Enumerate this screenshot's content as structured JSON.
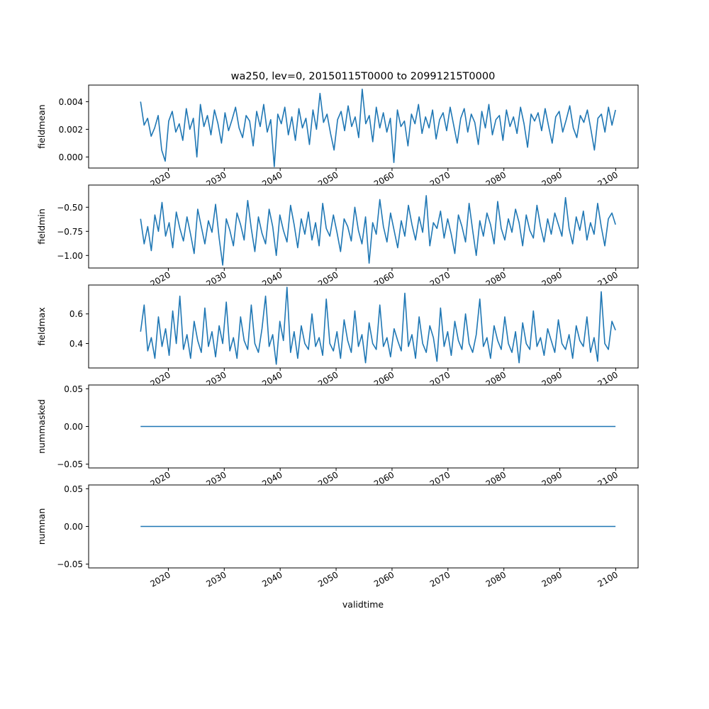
{
  "figure": {
    "title": "wa250, lev=0, 20150115T0000 to 20991215T0000",
    "xlabel": "validtime"
  },
  "style": {
    "line_color": "#1f77b4",
    "axes_color": "#000000",
    "background": "#ffffff"
  },
  "chart_data": [
    {
      "type": "line",
      "ylabel": "fieldmean",
      "x_range": [
        2015.04,
        2099.96
      ],
      "xlim": [
        2005.75,
        2104.0
      ],
      "x_ticks": [
        2020,
        2030,
        2040,
        2050,
        2060,
        2070,
        2080,
        2090,
        2100
      ],
      "x_tick_labels": [
        "2020",
        "2030",
        "2040",
        "2050",
        "2060",
        "2070",
        "2080",
        "2090",
        "2100"
      ],
      "ylim": [
        -0.0008,
        0.0052
      ],
      "y_ticks": [
        0.0,
        0.002,
        0.004
      ],
      "y_tick_labels": [
        "0.000",
        "0.002",
        "0.004"
      ],
      "series": [
        {
          "values": [
            0.004,
            0.0023,
            0.0028,
            0.0015,
            0.0021,
            0.003,
            0.0005,
            -0.0003,
            0.0026,
            0.0033,
            0.0018,
            0.0024,
            0.0012,
            0.0035,
            0.002,
            0.0028,
            0.0,
            0.0038,
            0.0022,
            0.003,
            0.0016,
            0.0034,
            0.0024,
            0.001,
            0.0032,
            0.0019,
            0.0027,
            0.0036,
            0.0021,
            0.0014,
            0.003,
            0.0026,
            0.0008,
            0.0033,
            0.0022,
            0.0038,
            0.0018,
            0.0027,
            -0.0007,
            0.0031,
            0.0024,
            0.0036,
            0.0016,
            0.0029,
            0.0012,
            0.0035,
            0.0021,
            0.0028,
            0.0009,
            0.0034,
            0.002,
            0.0046,
            0.0025,
            0.0031,
            0.0017,
            0.0005,
            0.0027,
            0.0033,
            0.0019,
            0.0037,
            0.0022,
            0.0029,
            0.0014,
            0.0049,
            0.0024,
            0.003,
            0.0011,
            0.0036,
            0.0021,
            0.0032,
            0.0018,
            0.0028,
            -0.0004,
            0.0034,
            0.0022,
            0.0026,
            0.0008,
            0.0031,
            0.0024,
            0.0038,
            0.0017,
            0.0029,
            0.0021,
            0.0034,
            0.0013,
            0.0027,
            0.0032,
            0.0019,
            0.0036,
            0.0023,
            0.001,
            0.0028,
            0.0035,
            0.0018,
            0.0031,
            0.0025,
            0.0009,
            0.0033,
            0.0021,
            0.0038,
            0.0016,
            0.0027,
            0.003,
            0.0012,
            0.0034,
            0.0022,
            0.0029,
            0.0017,
            0.0036,
            0.0024,
            0.0007,
            0.0031,
            0.0026,
            0.0032,
            0.0019,
            0.0035,
            0.0022,
            0.001,
            0.0029,
            0.0033,
            0.0018,
            0.0027,
            0.0037,
            0.0021,
            0.0014,
            0.003,
            0.0025,
            0.0034,
            0.002,
            0.0005,
            0.0028,
            0.0031,
            0.0018,
            0.0036,
            0.0023,
            0.0034
          ]
        }
      ]
    },
    {
      "type": "line",
      "ylabel": "fieldmin",
      "x_range": [
        2015.04,
        2099.96
      ],
      "xlim": [
        2005.75,
        2104.0
      ],
      "x_ticks": [
        2020,
        2030,
        2040,
        2050,
        2060,
        2070,
        2080,
        2090,
        2100
      ],
      "x_tick_labels": [
        "2020",
        "2030",
        "2040",
        "2050",
        "2060",
        "2070",
        "2080",
        "2090",
        "2100"
      ],
      "ylim": [
        -1.13,
        -0.27
      ],
      "y_ticks": [
        -1.0,
        -0.75,
        -0.5
      ],
      "y_tick_labels": [
        "−1.00",
        "−0.75",
        "−0.50"
      ],
      "series": [
        {
          "values": [
            -0.62,
            -0.88,
            -0.7,
            -0.95,
            -0.58,
            -0.75,
            -0.45,
            -0.8,
            -0.66,
            -0.92,
            -0.55,
            -0.72,
            -0.85,
            -0.6,
            -0.78,
            -0.98,
            -0.52,
            -0.7,
            -0.88,
            -0.64,
            -0.76,
            -0.47,
            -0.82,
            -1.1,
            -0.62,
            -0.74,
            -0.9,
            -0.56,
            -0.68,
            -0.84,
            -0.43,
            -0.72,
            -0.96,
            -0.6,
            -0.77,
            -0.88,
            -0.52,
            -0.7,
            -1.0,
            -0.58,
            -0.74,
            -0.86,
            -0.48,
            -0.68,
            -0.92,
            -0.62,
            -0.78,
            -0.55,
            -0.84,
            -0.66,
            -0.9,
            -0.46,
            -0.72,
            -0.8,
            -0.58,
            -0.76,
            -0.96,
            -0.62,
            -0.7,
            -0.85,
            -0.5,
            -0.74,
            -0.88,
            -0.6,
            -1.08,
            -0.66,
            -0.78,
            -0.42,
            -0.7,
            -0.86,
            -0.56,
            -0.74,
            -0.92,
            -0.64,
            -0.8,
            -0.48,
            -0.68,
            -0.84,
            -0.6,
            -0.76,
            -0.38,
            -0.9,
            -0.66,
            -0.72,
            -0.54,
            -0.82,
            -0.62,
            -0.78,
            -0.98,
            -0.58,
            -0.7,
            -0.86,
            -0.46,
            -0.74,
            -1.0,
            -0.64,
            -0.8,
            -0.56,
            -0.68,
            -0.88,
            -0.44,
            -0.72,
            -0.84,
            -0.62,
            -0.76,
            -0.52,
            -0.66,
            -0.9,
            -0.58,
            -0.74,
            -0.82,
            -0.48,
            -0.7,
            -0.86,
            -0.62,
            -0.78,
            -0.56,
            -0.68,
            -0.8,
            -0.4,
            -0.72,
            -0.88,
            -0.6,
            -0.74,
            -0.54,
            -0.84,
            -0.66,
            -0.78,
            -0.46,
            -0.7,
            -0.9,
            -0.62,
            -0.56,
            -0.68
          ]
        }
      ]
    },
    {
      "type": "line",
      "ylabel": "fieldmax",
      "x_range": [
        2015.04,
        2099.96
      ],
      "xlim": [
        2005.75,
        2104.0
      ],
      "x_ticks": [
        2020,
        2030,
        2040,
        2050,
        2060,
        2070,
        2080,
        2090,
        2100
      ],
      "x_tick_labels": [
        "2020",
        "2030",
        "2040",
        "2050",
        "2060",
        "2070",
        "2080",
        "2090",
        "2100"
      ],
      "ylim": [
        0.235,
        0.795
      ],
      "y_ticks": [
        0.4,
        0.6
      ],
      "y_tick_labels": [
        "0.4",
        "0.6"
      ],
      "series": [
        {
          "values": [
            0.48,
            0.66,
            0.35,
            0.44,
            0.3,
            0.58,
            0.38,
            0.5,
            0.32,
            0.62,
            0.4,
            0.72,
            0.36,
            0.46,
            0.3,
            0.55,
            0.42,
            0.34,
            0.64,
            0.38,
            0.48,
            0.31,
            0.52,
            0.4,
            0.68,
            0.35,
            0.44,
            0.3,
            0.58,
            0.42,
            0.36,
            0.66,
            0.4,
            0.34,
            0.5,
            0.72,
            0.38,
            0.46,
            0.26,
            0.55,
            0.42,
            0.78,
            0.34,
            0.48,
            0.3,
            0.52,
            0.4,
            0.36,
            0.6,
            0.38,
            0.44,
            0.32,
            0.7,
            0.4,
            0.35,
            0.48,
            0.3,
            0.56,
            0.42,
            0.34,
            0.62,
            0.38,
            0.46,
            0.27,
            0.54,
            0.4,
            0.36,
            0.66,
            0.38,
            0.44,
            0.31,
            0.5,
            0.42,
            0.35,
            0.74,
            0.38,
            0.46,
            0.3,
            0.58,
            0.4,
            0.34,
            0.52,
            0.44,
            0.28,
            0.64,
            0.38,
            0.48,
            0.32,
            0.55,
            0.42,
            0.36,
            0.6,
            0.4,
            0.34,
            0.46,
            0.7,
            0.38,
            0.44,
            0.3,
            0.52,
            0.42,
            0.36,
            0.58,
            0.4,
            0.34,
            0.48,
            0.27,
            0.54,
            0.4,
            0.36,
            0.62,
            0.38,
            0.44,
            0.32,
            0.5,
            0.42,
            0.34,
            0.56,
            0.4,
            0.36,
            0.46,
            0.3,
            0.52,
            0.42,
            0.38,
            0.58,
            0.34,
            0.44,
            0.28,
            0.75,
            0.4,
            0.36,
            0.55,
            0.49
          ]
        }
      ]
    },
    {
      "type": "line",
      "ylabel": "nummasked",
      "x_range": [
        2015.04,
        2099.96
      ],
      "xlim": [
        2005.75,
        2104.0
      ],
      "x_ticks": [
        2020,
        2030,
        2040,
        2050,
        2060,
        2070,
        2080,
        2090,
        2100
      ],
      "x_tick_labels": [
        "2020",
        "2030",
        "2040",
        "2050",
        "2060",
        "2070",
        "2080",
        "2090",
        "2100"
      ],
      "ylim": [
        -0.055,
        0.055
      ],
      "y_ticks": [
        -0.05,
        0.0,
        0.05
      ],
      "y_tick_labels": [
        "−0.05",
        "0.00",
        "0.05"
      ],
      "series": [
        {
          "values": [
            0,
            0
          ]
        }
      ]
    },
    {
      "type": "line",
      "ylabel": "numnan",
      "x_range": [
        2015.04,
        2099.96
      ],
      "xlim": [
        2005.75,
        2104.0
      ],
      "x_ticks": [
        2020,
        2030,
        2040,
        2050,
        2060,
        2070,
        2080,
        2090,
        2100
      ],
      "x_tick_labels": [
        "2020",
        "2030",
        "2040",
        "2050",
        "2060",
        "2070",
        "2080",
        "2090",
        "2100"
      ],
      "ylim": [
        -0.055,
        0.055
      ],
      "y_ticks": [
        -0.05,
        0.0,
        0.05
      ],
      "y_tick_labels": [
        "−0.05",
        "0.00",
        "0.05"
      ],
      "series": [
        {
          "values": [
            0,
            0
          ]
        }
      ]
    }
  ]
}
